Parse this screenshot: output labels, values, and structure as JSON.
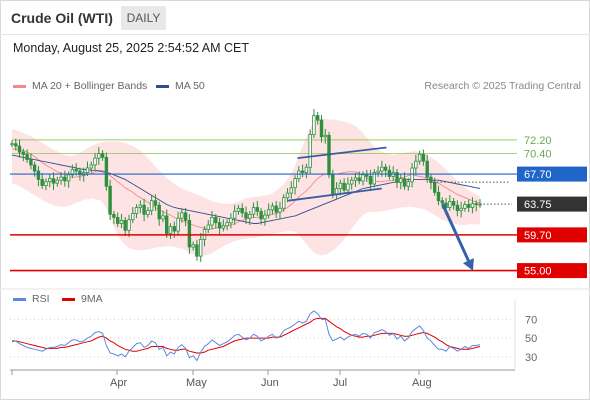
{
  "header": {
    "instrument": "Crude Oil (WTI)",
    "timeframe": "DAILY",
    "timestamp": "Monday, August 25, 2025 2:54:52 AM CET",
    "credit": "Research © 2025 Trading Central"
  },
  "colors": {
    "bollinger_fill": "#fde3e3",
    "ma20": "#f08a8a",
    "ma50": "#2e4f8f",
    "candle": "#2f8f3f",
    "ma_line": "#1f66c8",
    "support_line": "#e00000",
    "resistance_line": "#9ccc65",
    "trendline": "#3b5ba5",
    "arrow": "#3461a8",
    "rsi": "#5b88e0",
    "rsi_ma": "#e00000"
  },
  "chart_data": [
    {
      "type": "candlestick",
      "legend": [
        {
          "label": "MA 20 + Bollinger Bands",
          "color": "#f08a8a"
        },
        {
          "label": "MA 50",
          "color": "#2e4f8f"
        }
      ],
      "x_ticks": [
        "Apr",
        "May",
        "Jun",
        "Jul",
        "Aug"
      ],
      "y_range": [
        53.5,
        78.5
      ],
      "levels": [
        {
          "value": 72.2,
          "label": "72.20",
          "kind": "resistance",
          "style": "line"
        },
        {
          "value": 70.4,
          "label": "70.40",
          "kind": "resistance",
          "style": "line"
        },
        {
          "value": 67.7,
          "label": "67.70",
          "kind": "pivot",
          "style": "box",
          "color": "#1f66c8"
        },
        {
          "value": 63.75,
          "label": "63.75",
          "kind": "last_price",
          "style": "box",
          "color": "#333333"
        },
        {
          "value": 59.7,
          "label": "59.70",
          "kind": "support",
          "style": "box",
          "color": "#e00000"
        },
        {
          "value": 55.0,
          "label": "55.00",
          "kind": "support",
          "style": "box",
          "color": "#e00000"
        }
      ],
      "trendlines": [
        {
          "from": [
            0.61,
            69.8
          ],
          "to": [
            0.8,
            71.2
          ]
        },
        {
          "from": [
            0.59,
            64.2
          ],
          "to": [
            0.79,
            65.8
          ]
        }
      ],
      "forecast_arrow": {
        "from": [
          0.92,
          63.75
        ],
        "to": [
          0.985,
          55.0
        ]
      },
      "close": [
        71.7,
        71.4,
        70.6,
        70.3,
        69.6,
        68.9,
        68.1,
        67.0,
        66.2,
        66.7,
        67.1,
        66.5,
        66.9,
        67.3,
        66.8,
        67.6,
        68.3,
        68.1,
        67.6,
        67.9,
        68.5,
        68.9,
        69.8,
        70.4,
        69.9,
        66.1,
        62.4,
        62.0,
        61.2,
        61.6,
        60.3,
        61.7,
        62.5,
        63.3,
        63.6,
        62.4,
        62.9,
        64.2,
        63.6,
        61.8,
        62.2,
        59.9,
        60.8,
        60.2,
        61.9,
        62.6,
        61.6,
        58.1,
        58.4,
        56.9,
        59.1,
        60.4,
        61.0,
        62.0,
        61.3,
        60.6,
        60.9,
        61.3,
        61.9,
        62.8,
        63.2,
        62.6,
        61.9,
        62.4,
        63.3,
        62.8,
        61.8,
        62.3,
        63.0,
        63.5,
        62.7,
        63.2,
        64.6,
        65.2,
        65.9,
        67.1,
        68.1,
        67.9,
        68.6,
        72.9,
        75.4,
        74.8,
        72.6,
        72.8,
        67.6,
        65.1,
        65.8,
        66.5,
        65.6,
        66.4,
        66.9,
        67.2,
        66.8,
        67.6,
        67.4,
        66.4,
        67.9,
        68.1,
        68.6,
        68.2,
        67.4,
        67.9,
        66.6,
        67.1,
        66.1,
        66.7,
        68.5,
        69.4,
        70.3,
        69.4,
        67.3,
        66.6,
        65.3,
        64.2,
        63.9,
        63.3,
        64.1,
        63.6,
        62.9,
        63.2,
        63.7,
        63.3,
        63.8,
        63.7,
        63.75
      ],
      "ma20": [
        71.0,
        71.0,
        70.9,
        70.8,
        70.6,
        70.3,
        70.0,
        69.6,
        69.2,
        68.9,
        68.6,
        68.3,
        68.0,
        67.8,
        67.6,
        67.4,
        67.3,
        67.3,
        67.4,
        67.5,
        67.6,
        67.8,
        68.0,
        68.2,
        68.2,
        67.9,
        67.5,
        67.1,
        66.7,
        66.3,
        65.9,
        65.6,
        65.3,
        64.9,
        64.6,
        64.3,
        64.0,
        63.6,
        63.3,
        63.0,
        62.8,
        62.5,
        62.3,
        62.0,
        61.8,
        61.6,
        61.4,
        61.2,
        61.0,
        60.8,
        60.7,
        60.6,
        60.5,
        60.5,
        60.6,
        60.7,
        60.8,
        60.9,
        61.0,
        61.2,
        61.4,
        61.6,
        61.8,
        61.9,
        62.0,
        62.0,
        62.1,
        62.2,
        62.3,
        62.4,
        62.5,
        62.7,
        63.0,
        63.3,
        63.7,
        64.2,
        64.7,
        65.1,
        65.5,
        66.0,
        66.6,
        67.1,
        67.5,
        67.7,
        67.7,
        67.7,
        67.7,
        67.8,
        67.9,
        68.0,
        68.0,
        68.0,
        67.8,
        67.5,
        67.2,
        66.9,
        66.8,
        66.7,
        66.7,
        66.8,
        66.8,
        66.9,
        67.0,
        67.2,
        67.3,
        67.5,
        67.6,
        67.5,
        67.4,
        67.3,
        67.1,
        66.9,
        66.7,
        66.5,
        66.2,
        65.9,
        65.6,
        65.3,
        65.0,
        64.8,
        64.6,
        64.4,
        64.2,
        64.0,
        63.9
      ],
      "bb_upper": [
        73.6,
        73.5,
        73.3,
        73.1,
        72.9,
        72.7,
        72.4,
        72.1,
        71.8,
        71.5,
        71.2,
        70.9,
        70.7,
        70.4,
        70.2,
        70.1,
        70.1,
        70.3,
        70.5,
        70.8,
        71.1,
        71.4,
        71.6,
        71.8,
        71.9,
        72.0,
        72.0,
        72.0,
        72.0,
        71.9,
        71.8,
        71.6,
        71.4,
        71.1,
        70.8,
        70.3,
        69.8,
        69.3,
        68.7,
        68.2,
        67.7,
        67.2,
        66.8,
        66.4,
        66.1,
        65.8,
        65.6,
        65.4,
        65.2,
        65.0,
        64.8,
        64.6,
        64.4,
        64.2,
        64.0,
        63.9,
        63.8,
        63.8,
        63.8,
        63.9,
        64.1,
        64.3,
        64.5,
        64.6,
        64.7,
        64.7,
        64.8,
        64.9,
        65.0,
        65.2,
        65.5,
        65.9,
        66.4,
        67.0,
        67.8,
        68.8,
        70.2,
        71.4,
        72.6,
        73.8,
        74.6,
        75.0,
        75.0,
        75.0,
        74.9,
        74.9,
        74.8,
        74.7,
        74.6,
        74.5,
        74.3,
        74.0,
        73.6,
        73.1,
        72.5,
        71.9,
        71.3,
        70.9,
        70.6,
        70.4,
        70.3,
        70.2,
        70.3,
        70.4,
        70.5,
        70.6,
        70.7,
        70.7,
        70.6,
        70.4,
        70.2,
        69.9,
        69.6,
        69.2,
        68.8,
        68.3,
        67.8,
        67.3,
        66.8,
        66.4,
        66.0,
        65.6,
        65.3,
        65.0,
        64.8
      ],
      "bb_lower": [
        66.5,
        66.3,
        66.1,
        65.8,
        65.5,
        65.2,
        64.9,
        64.6,
        64.3,
        64.0,
        63.8,
        63.6,
        63.5,
        63.4,
        63.4,
        63.5,
        63.7,
        63.9,
        64.1,
        64.3,
        64.4,
        64.5,
        64.4,
        64.3,
        64.0,
        63.2,
        62.0,
        60.8,
        59.7,
        58.9,
        58.4,
        58.0,
        57.8,
        57.7,
        57.7,
        57.7,
        57.8,
        57.9,
        58.0,
        58.1,
        58.1,
        58.2,
        58.2,
        58.1,
        58.0,
        57.9,
        57.7,
        57.4,
        57.2,
        57.0,
        57.0,
        57.0,
        57.1,
        57.3,
        57.6,
        57.9,
        58.2,
        58.5,
        58.7,
        58.9,
        59.0,
        59.1,
        59.2,
        59.3,
        59.3,
        59.4,
        59.5,
        59.6,
        59.7,
        59.8,
        59.9,
        60.0,
        60.1,
        60.2,
        60.2,
        60.1,
        59.7,
        59.1,
        58.5,
        57.9,
        57.4,
        57.1,
        57.0,
        57.1,
        57.3,
        57.6,
        58.0,
        58.5,
        59.1,
        59.8,
        60.5,
        61.2,
        61.8,
        62.3,
        62.6,
        62.7,
        62.7,
        62.7,
        62.8,
        62.9,
        63.0,
        63.1,
        63.2,
        63.3,
        63.3,
        63.4,
        63.4,
        63.3,
        63.2,
        63.1,
        62.9,
        62.6,
        62.3,
        62.0,
        61.7,
        61.5,
        61.3,
        61.2,
        61.1,
        61.0,
        61.0,
        61.1,
        61.1,
        61.1,
        61.1
      ],
      "ma50": [
        70.2,
        70.1,
        70.0,
        69.9,
        69.8,
        69.7,
        69.6,
        69.5,
        69.4,
        69.3,
        69.2,
        69.1,
        69.0,
        68.9,
        68.8,
        68.7,
        68.6,
        68.5,
        68.4,
        68.3,
        68.3,
        68.2,
        68.2,
        68.1,
        68.0,
        67.9,
        67.8,
        67.6,
        67.4,
        67.2,
        67.0,
        66.7,
        66.4,
        66.1,
        65.8,
        65.5,
        65.2,
        64.9,
        64.6,
        64.3,
        64.0,
        63.7,
        63.5,
        63.3,
        63.2,
        63.1,
        63.0,
        62.9,
        62.8,
        62.7,
        62.6,
        62.5,
        62.4,
        62.3,
        62.2,
        62.1,
        62.0,
        61.9,
        61.8,
        61.7,
        61.6,
        61.5,
        61.4,
        61.3,
        61.2,
        61.2,
        61.3,
        61.4,
        61.5,
        61.6,
        61.7,
        61.8,
        61.9,
        62.0,
        62.1,
        62.2,
        62.4,
        62.6,
        62.8,
        63.0,
        63.2,
        63.4,
        63.6,
        63.8,
        64.0,
        64.2,
        64.4,
        64.6,
        64.8,
        65.0,
        65.2,
        65.4,
        65.6,
        65.8,
        65.9,
        66.0,
        66.1,
        66.2,
        66.3,
        66.4,
        66.5,
        66.6,
        66.7,
        66.8,
        66.9,
        67.0,
        67.0,
        67.0,
        67.0,
        67.0,
        67.0,
        66.9,
        66.9,
        66.9,
        66.8,
        66.7,
        66.6,
        66.5,
        66.4,
        66.3,
        66.2,
        66.1,
        66.0,
        65.9,
        65.8
      ]
    },
    {
      "type": "line",
      "legend": [
        {
          "label": "RSI",
          "color": "#5b88e0"
        },
        {
          "label": "9MA",
          "color": "#e00000"
        }
      ],
      "y_range": [
        18,
        80
      ],
      "y_ticks": [
        30,
        50,
        70
      ],
      "series": [
        {
          "name": "RSI",
          "values": [
            46,
            47,
            44,
            42,
            40,
            39,
            38,
            37,
            36,
            38,
            40,
            40,
            41,
            43,
            42,
            45,
            48,
            48,
            46,
            47,
            50,
            52,
            56,
            57,
            55,
            42,
            34,
            33,
            31,
            33,
            30,
            36,
            40,
            44,
            45,
            40,
            42,
            47,
            45,
            38,
            40,
            31,
            35,
            33,
            40,
            43,
            39,
            29,
            31,
            26,
            35,
            41,
            44,
            48,
            45,
            42,
            44,
            46,
            49,
            53,
            54,
            51,
            48,
            50,
            54,
            52,
            47,
            49,
            52,
            54,
            50,
            52,
            58,
            60,
            62,
            65,
            68,
            66,
            68,
            76,
            79,
            76,
            70,
            70,
            54,
            47,
            49,
            51,
            48,
            51,
            53,
            54,
            52,
            55,
            54,
            50,
            56,
            57,
            59,
            57,
            53,
            55,
            49,
            52,
            47,
            50,
            57,
            60,
            63,
            58,
            50,
            47,
            42,
            38,
            38,
            36,
            41,
            39,
            36,
            38,
            41,
            39,
            42,
            42,
            43
          ]
        },
        {
          "name": "9MA",
          "values": [
            47,
            47,
            46,
            45,
            44,
            43,
            42,
            41,
            40,
            39,
            39,
            39,
            39,
            40,
            40,
            41,
            42,
            43,
            44,
            45,
            46,
            47,
            49,
            51,
            52,
            50,
            47,
            45,
            42,
            40,
            38,
            37,
            36,
            36,
            37,
            38,
            39,
            41,
            41,
            41,
            41,
            39,
            38,
            37,
            37,
            38,
            38,
            36,
            35,
            34,
            34,
            35,
            37,
            38,
            39,
            40,
            41,
            43,
            45,
            47,
            48,
            49,
            50,
            50,
            50,
            50,
            50,
            50,
            50,
            51,
            51,
            51,
            53,
            55,
            57,
            59,
            61,
            63,
            65,
            67,
            70,
            71,
            71,
            71,
            68,
            65,
            62,
            60,
            57,
            55,
            53,
            52,
            51,
            51,
            52,
            52,
            53,
            54,
            55,
            55,
            55,
            55,
            54,
            53,
            52,
            52,
            53,
            54,
            55,
            56,
            55,
            53,
            51,
            48,
            46,
            43,
            41,
            40,
            39,
            38,
            38,
            38,
            39,
            40,
            41
          ]
        }
      ]
    }
  ]
}
